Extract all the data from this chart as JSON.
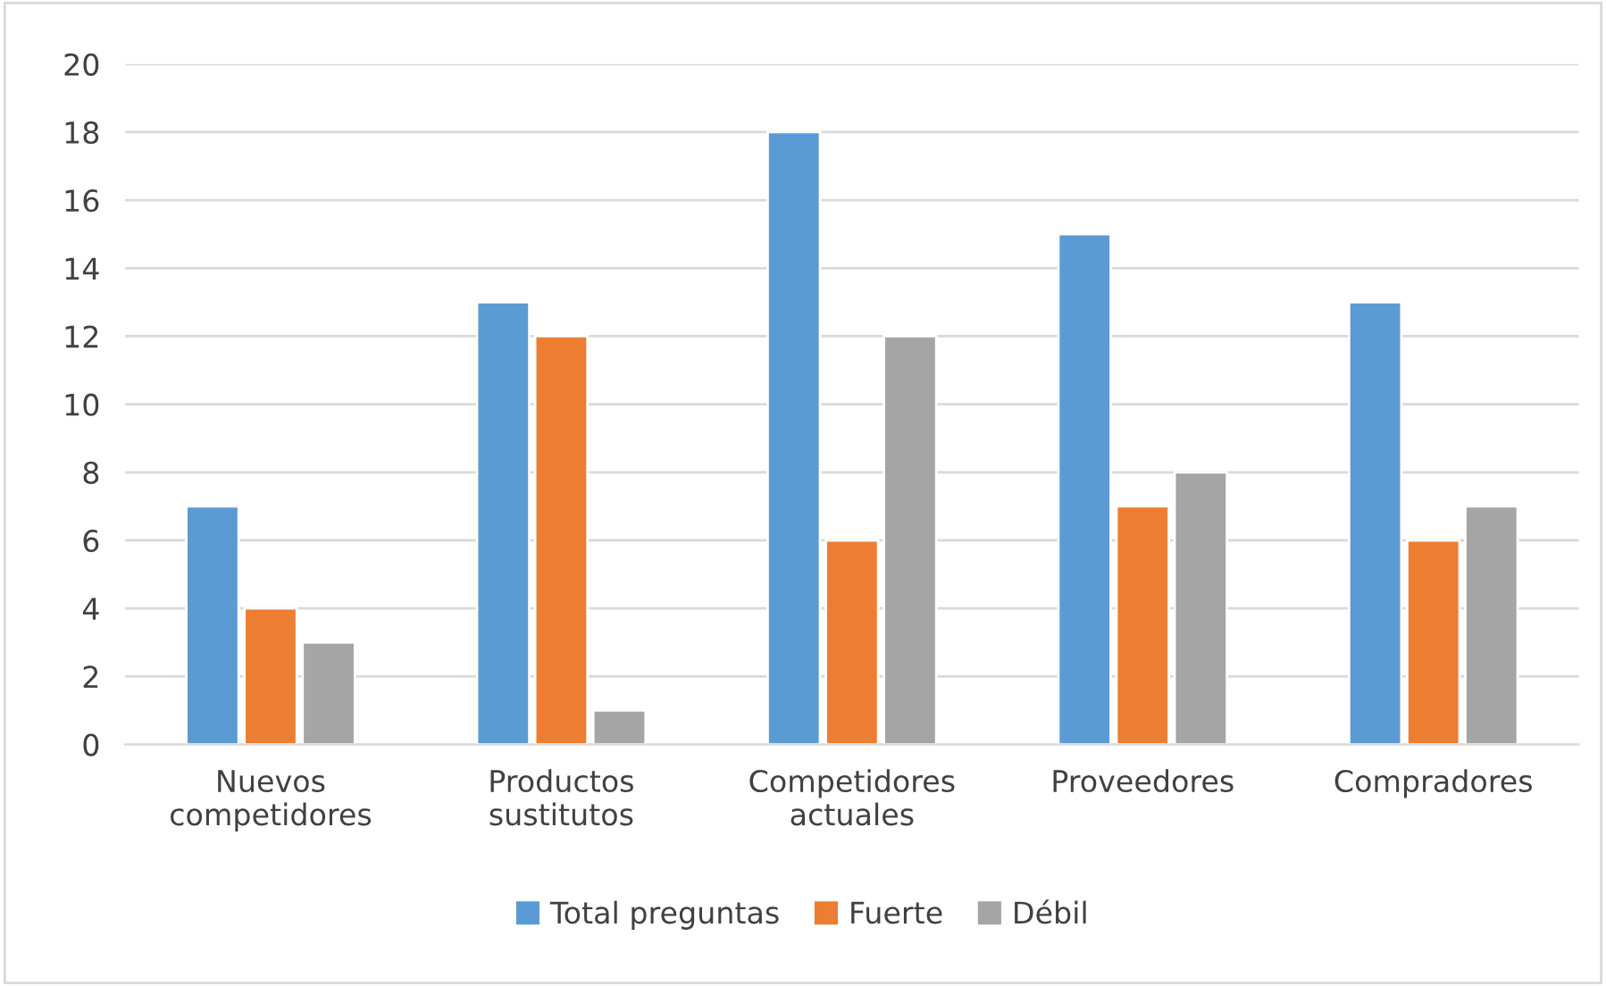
{
  "chart_data": {
    "type": "bar",
    "categories": [
      "Nuevos\ncompetidores",
      "Productos\nsustitutos",
      "Competidores\nactuales",
      "Proveedores",
      "Compradores"
    ],
    "series": [
      {
        "name": "Total preguntas",
        "color": "#5b9bd5",
        "values": [
          7,
          13,
          18,
          15,
          13
        ]
      },
      {
        "name": "Fuerte",
        "color": "#ed7d31",
        "values": [
          4,
          12,
          6,
          7,
          6
        ]
      },
      {
        "name": "Débil",
        "color": "#a5a5a5",
        "values": [
          3,
          1,
          12,
          8,
          7
        ]
      }
    ],
    "ylim": [
      0,
      20
    ],
    "yticks": [
      0,
      2,
      4,
      6,
      8,
      10,
      12,
      14,
      16,
      18,
      20
    ],
    "grid": "y",
    "legend": "bottom"
  }
}
